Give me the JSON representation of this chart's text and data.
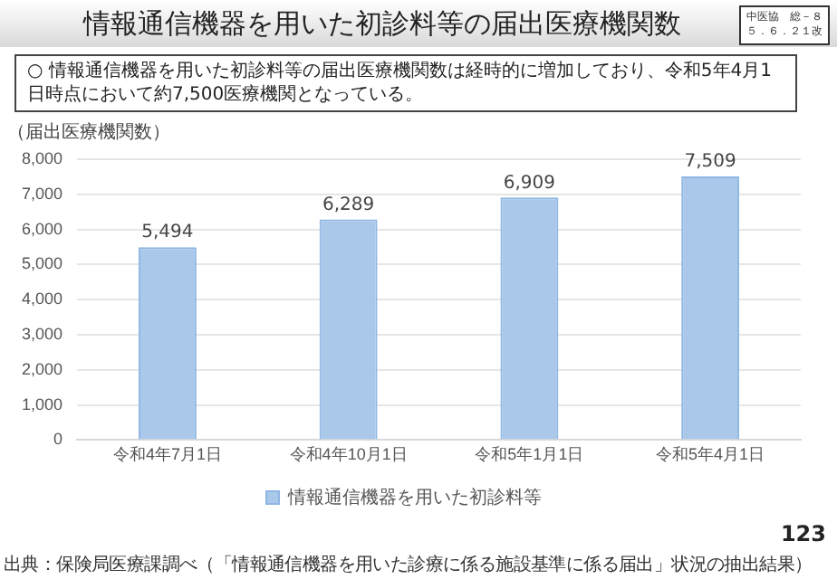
{
  "chart_data": {
    "type": "bar",
    "title": "情報通信機器を用いた初診料等の届出医療機関数",
    "annotations": [
      "中医協　総－８",
      "５．６．２１改",
      "○ 情報通信機器を用いた初診料等の届出医療機関数は経時的に増加しており、令和5年4月1日時点において約7,500医療機関となっている。",
      "出典：保険局医療課調べ（「情報通信機器を用いた診療に係る施設基準に係る届出」状況の抽出結果）",
      "123"
    ],
    "ylabel": "（届出医療機関数）",
    "categories": [
      "令和4年7月1日",
      "令和4年10月1日",
      "令和5年1月1日",
      "令和5年4月1日"
    ],
    "series": [
      {
        "name": "情報通信機器を用いた初診料等",
        "color": "#a9c8ea",
        "values": [
          5494,
          6289,
          6909,
          7509
        ],
        "value_labels": [
          "5,494",
          "6,289",
          "6,909",
          "7,509"
        ]
      }
    ],
    "ylim": [
      0,
      8000
    ],
    "yticks": [
      {
        "value": 0,
        "label": "0"
      },
      {
        "value": 1000,
        "label": "1,000"
      },
      {
        "value": 2000,
        "label": "2,000"
      },
      {
        "value": 3000,
        "label": "3,000"
      },
      {
        "value": 4000,
        "label": "4,000"
      },
      {
        "value": 5000,
        "label": "5,000"
      },
      {
        "value": 6000,
        "label": "6,000"
      },
      {
        "value": 7000,
        "label": "7,000"
      },
      {
        "value": 8000,
        "label": "8,000"
      }
    ],
    "grid": "y",
    "legend": "bottom"
  }
}
